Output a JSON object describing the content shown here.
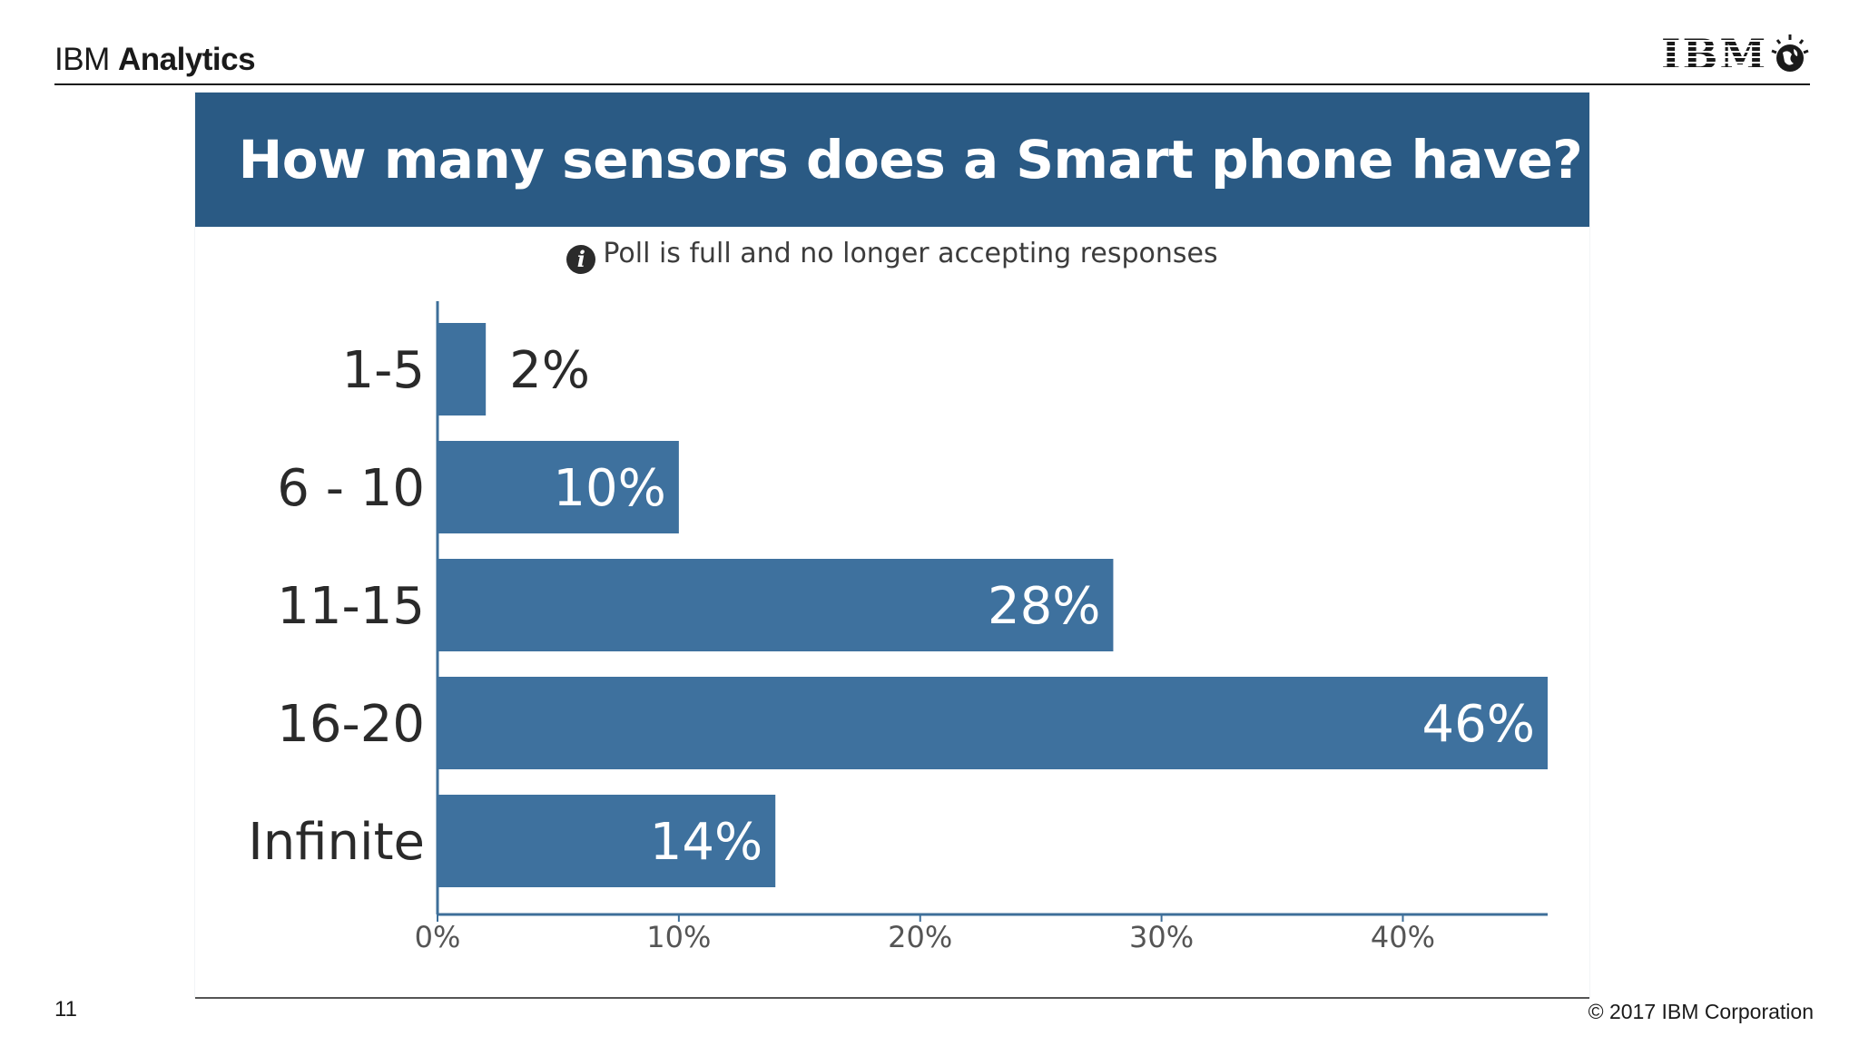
{
  "slide": {
    "brand_light": "IBM",
    "brand_bold": "Analytics",
    "logo_text": "IBM",
    "page_number": "11",
    "copyright": "© 2017 IBM Corporation"
  },
  "poll": {
    "title": "How many sensors does a Smart phone have?",
    "status": "Poll is full and no longer accepting responses",
    "header_color": "#2a5a84"
  },
  "chart_data": {
    "type": "bar",
    "orientation": "horizontal",
    "title": "How many sensors does a Smart phone have?",
    "categories": [
      "1-5",
      "6 - 10",
      "11-15",
      "16-20",
      "Infinite"
    ],
    "values": [
      2,
      10,
      28,
      46,
      14
    ],
    "value_labels": [
      "2%",
      "10%",
      "28%",
      "46%",
      "14%"
    ],
    "xlim": [
      0,
      46
    ],
    "xticks": [
      0,
      10,
      20,
      30,
      40
    ],
    "xtick_labels": [
      "0%",
      "10%",
      "20%",
      "30%",
      "40%"
    ],
    "xlabel": "",
    "ylabel": "",
    "grid": false,
    "bar_color": "#3e719e"
  }
}
